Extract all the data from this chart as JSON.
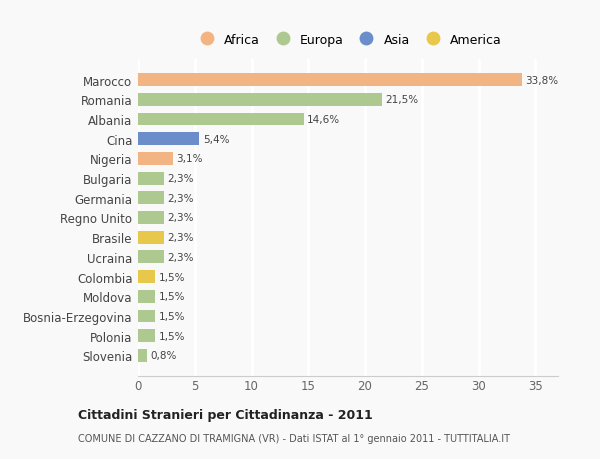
{
  "countries": [
    "Marocco",
    "Romania",
    "Albania",
    "Cina",
    "Nigeria",
    "Bulgaria",
    "Germania",
    "Regno Unito",
    "Brasile",
    "Ucraina",
    "Colombia",
    "Moldova",
    "Bosnia-Erzegovina",
    "Polonia",
    "Slovenia"
  ],
  "values": [
    33.8,
    21.5,
    14.6,
    5.4,
    3.1,
    2.3,
    2.3,
    2.3,
    2.3,
    2.3,
    1.5,
    1.5,
    1.5,
    1.5,
    0.8
  ],
  "labels": [
    "33,8%",
    "21,5%",
    "14,6%",
    "5,4%",
    "3,1%",
    "2,3%",
    "2,3%",
    "2,3%",
    "2,3%",
    "2,3%",
    "1,5%",
    "1,5%",
    "1,5%",
    "1,5%",
    "0,8%"
  ],
  "colors": [
    "#f2b483",
    "#adc990",
    "#adc990",
    "#6b8ecb",
    "#f2b483",
    "#adc990",
    "#adc990",
    "#adc990",
    "#e8c84a",
    "#adc990",
    "#e8c84a",
    "#adc990",
    "#adc990",
    "#adc990",
    "#adc990"
  ],
  "legend_labels": [
    "Africa",
    "Europa",
    "Asia",
    "America"
  ],
  "legend_colors": [
    "#f2b483",
    "#adc990",
    "#6b8ecb",
    "#e8c84a"
  ],
  "title_bold": "Cittadini Stranieri per Cittadinanza - 2011",
  "subtitle": "COMUNE DI CAZZANO DI TRAMIGNA (VR) - Dati ISTAT al 1° gennaio 2011 - TUTTITALIA.IT",
  "xlim": [
    0,
    37
  ],
  "xticks": [
    0,
    5,
    10,
    15,
    20,
    25,
    30,
    35
  ],
  "background_color": "#f9f9f9",
  "grid_color": "#ffffff",
  "bar_height": 0.65
}
